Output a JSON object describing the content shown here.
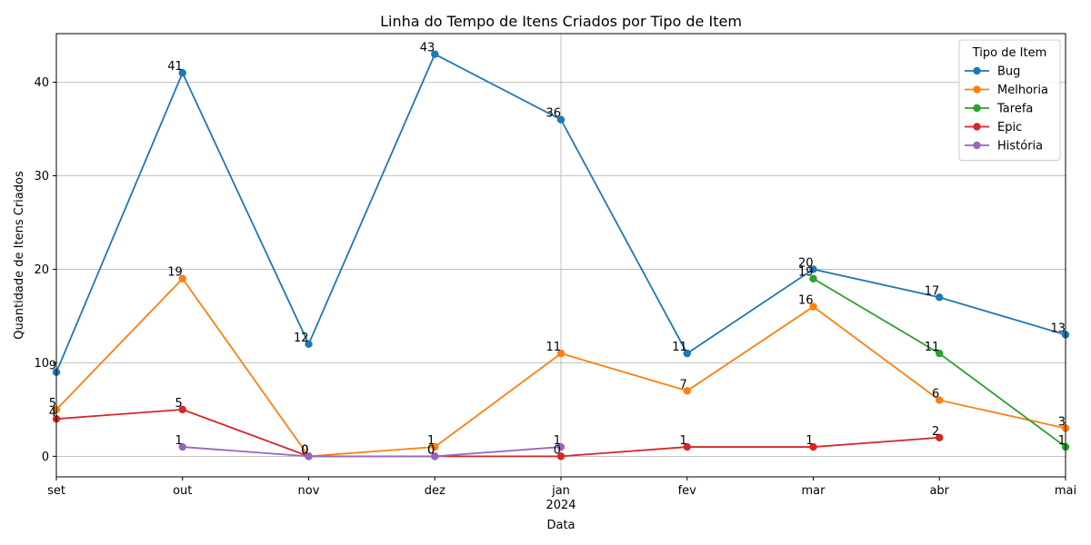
{
  "chart_data": {
    "type": "line",
    "title": "Linha do Tempo de Itens Criados por Tipo de Item",
    "xlabel": "Data",
    "ylabel": "Quantidade de Itens Criados",
    "x": [
      "set",
      "out",
      "nov",
      "dez",
      "jan",
      "fev",
      "mar",
      "abr",
      "mai"
    ],
    "x_year_label": {
      "index": 4,
      "text": "2024"
    },
    "yticks": [
      0,
      10,
      20,
      30,
      40
    ],
    "ylim": [
      -2.2,
      45.2
    ],
    "grid": true,
    "legend": {
      "title": "Tipo de Item",
      "placement": "top-right"
    },
    "series": [
      {
        "name": "Bug",
        "color": "#1f77b4",
        "values": [
          9,
          41,
          12,
          43,
          36,
          11,
          20,
          17,
          13
        ]
      },
      {
        "name": "Melhoria",
        "color": "#ff7f0e",
        "values": [
          5,
          19,
          0,
          1,
          11,
          7,
          16,
          6,
          3
        ]
      },
      {
        "name": "Tarefa",
        "color": "#2ca02c",
        "values": [
          null,
          null,
          null,
          null,
          null,
          null,
          19,
          11,
          1
        ]
      },
      {
        "name": "Epic",
        "color": "#d62728",
        "values": [
          4,
          5,
          0,
          0,
          0,
          1,
          1,
          2,
          null
        ]
      },
      {
        "name": "História",
        "color": "#9467bd",
        "values": [
          null,
          1,
          0,
          0,
          1,
          null,
          null,
          null,
          null
        ]
      }
    ]
  }
}
